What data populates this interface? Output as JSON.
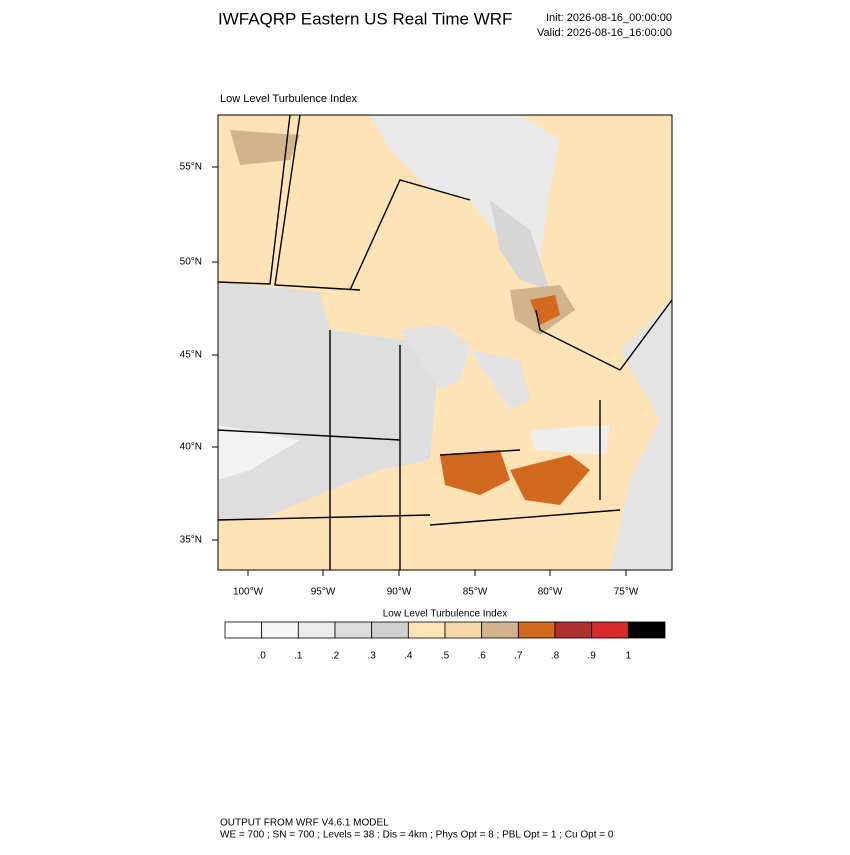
{
  "header": {
    "title": "IWFAQRP Eastern US Real Time WRF",
    "init": "Init: 2026-08-16_00:00:00",
    "valid": "Valid: 2026-08-16_16:00:00"
  },
  "map": {
    "title": "Low Level Turbulence Index",
    "lat_labels": [
      "55°N",
      "50°N",
      "45°N",
      "40°N",
      "35°N"
    ],
    "lon_labels": [
      "100°W",
      "95°W",
      "90°W",
      "85°W",
      "80°W",
      "75°W"
    ]
  },
  "colorbar": {
    "title": "Low Level Turbulence Index",
    "colors": [
      "#ffffff",
      "#f6f6f6",
      "#ececec",
      "#dcdcdc",
      "#d0d0d0",
      "#ffe4b5",
      "#f5d6a8",
      "#d2b48c",
      "#d2691e",
      "#b03030",
      "#d92b2b",
      "#000000"
    ],
    "labels": [
      ".0",
      ".1",
      ".2",
      ".3",
      ".4",
      ".5",
      ".6",
      ".7",
      ".8",
      ".9",
      "1"
    ]
  },
  "footer": {
    "line1": "OUTPUT FROM WRF V4.6.1 MODEL",
    "line2": "WE = 700 ; SN = 700 ; Levels = 38 ; Dis = 4km ; Phys Opt = 8 ; PBL Opt = 1 ; Cu Opt = 0"
  }
}
